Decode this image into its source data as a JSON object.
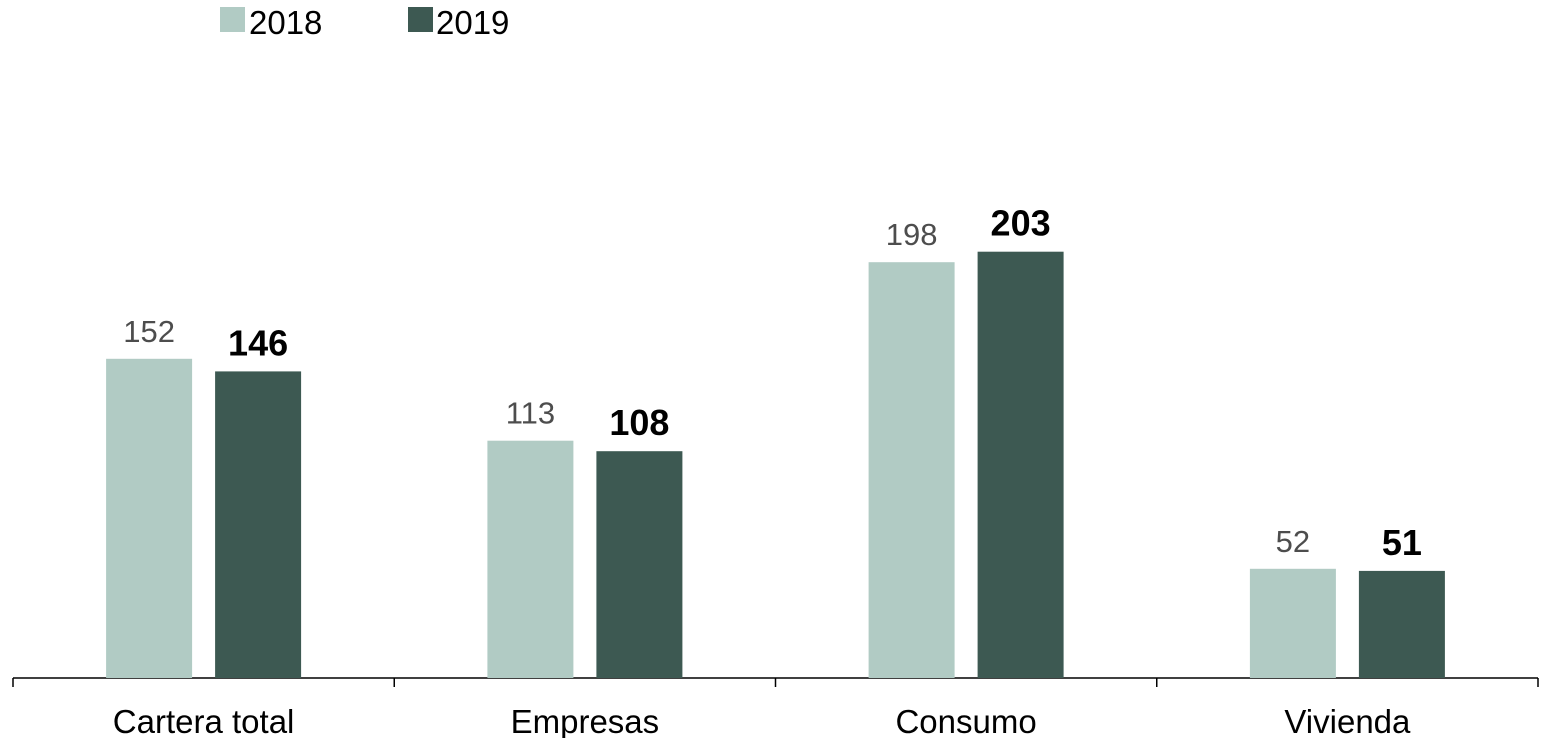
{
  "chart_data": {
    "type": "bar",
    "categories": [
      "Cartera total",
      "Empresas",
      "Consumo",
      "Vivienda"
    ],
    "series": [
      {
        "name": "2018",
        "values": [
          152,
          113,
          198,
          52
        ],
        "color": "#b1cbc4"
      },
      {
        "name": "2019",
        "values": [
          146,
          108,
          203,
          51
        ],
        "color": "#3d5952"
      }
    ],
    "title": "",
    "xlabel": "",
    "ylabel": "",
    "ylim": [
      0,
      210
    ],
    "grid": false,
    "legend": "top-left",
    "axis_color": "#000000"
  }
}
